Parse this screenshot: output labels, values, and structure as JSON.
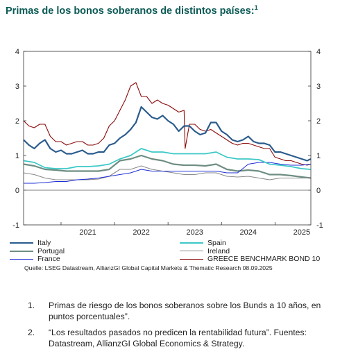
{
  "title": "Primas de los bonos soberanos de distintos países:",
  "title_sup": "1",
  "source": "Quelle: LSEG Datastream, AllianzGI Global Capital Markets & Thematic Research 08.09.2025",
  "notes": [
    {
      "num": "1.",
      "text": "Primas de riesgo de los bonos soberanos sobre los Bunds a 10 años, en puntos porcentuales”."
    },
    {
      "num": "2.",
      "text": "“Los resultados pasados no predicen la rentabilidad futura”. Fuentes: Datastream, AllianzGI Global Economics & Strategy."
    }
  ],
  "chart_data": {
    "type": "line",
    "title": "",
    "xlabel": "",
    "ylabel": "",
    "xlim": [
      2020.3,
      2025.67
    ],
    "ylim": [
      -1,
      4
    ],
    "yticks": [
      "4",
      "3",
      "2",
      "1",
      "0",
      "-1"
    ],
    "xticks": [
      "2021",
      "2022",
      "2023",
      "2024",
      "2025"
    ],
    "xtick_values": [
      2021,
      2022,
      2023,
      2024,
      2025
    ],
    "zero_line": true,
    "legend_position": "bottom",
    "series": [
      {
        "name": "Italy",
        "color": "#2a5b8c",
        "x": [
          2020.3,
          2020.4,
          2020.5,
          2020.6,
          2020.7,
          2020.8,
          2020.9,
          2021.0,
          2021.1,
          2021.2,
          2021.3,
          2021.4,
          2021.5,
          2021.6,
          2021.7,
          2021.8,
          2021.9,
          2022.0,
          2022.1,
          2022.2,
          2022.3,
          2022.4,
          2022.5,
          2022.6,
          2022.7,
          2022.8,
          2022.9,
          2023.0,
          2023.1,
          2023.2,
          2023.3,
          2023.4,
          2023.5,
          2023.6,
          2023.7,
          2023.8,
          2023.9,
          2024.0,
          2024.1,
          2024.2,
          2024.3,
          2024.4,
          2024.5,
          2024.6,
          2024.7,
          2024.8,
          2024.9,
          2025.0,
          2025.1,
          2025.2,
          2025.3,
          2025.4,
          2025.5,
          2025.6,
          2025.67
        ],
        "y": [
          1.45,
          1.3,
          1.2,
          1.35,
          1.45,
          1.2,
          1.1,
          1.15,
          1.05,
          1.05,
          1.1,
          1.15,
          1.05,
          1.05,
          1.1,
          1.1,
          1.3,
          1.35,
          1.5,
          1.6,
          1.75,
          1.95,
          2.4,
          2.25,
          2.1,
          2.05,
          2.15,
          2.0,
          1.9,
          1.7,
          1.85,
          1.85,
          1.7,
          1.6,
          1.65,
          1.95,
          1.95,
          1.7,
          1.6,
          1.45,
          1.4,
          1.45,
          1.55,
          1.4,
          1.35,
          1.35,
          1.3,
          1.1,
          1.1,
          1.05,
          1.0,
          0.95,
          0.9,
          0.85,
          0.9
        ]
      },
      {
        "name": "Spain",
        "color": "#3cc8c8",
        "x": [
          2020.3,
          2020.5,
          2020.7,
          2020.9,
          2021.1,
          2021.3,
          2021.5,
          2021.7,
          2021.9,
          2022.1,
          2022.3,
          2022.5,
          2022.7,
          2022.9,
          2023.1,
          2023.3,
          2023.5,
          2023.7,
          2023.9,
          2024.1,
          2024.3,
          2024.5,
          2024.7,
          2024.9,
          2025.1,
          2025.3,
          2025.5,
          2025.67
        ],
        "y": [
          0.85,
          0.8,
          0.65,
          0.62,
          0.62,
          0.68,
          0.68,
          0.7,
          0.75,
          0.9,
          1.0,
          1.2,
          1.1,
          1.1,
          1.05,
          1.05,
          1.05,
          1.05,
          1.1,
          0.95,
          0.9,
          0.9,
          0.88,
          0.75,
          0.72,
          0.68,
          0.62,
          0.6
        ]
      },
      {
        "name": "Portugal",
        "color": "#6e8e82",
        "x": [
          2020.3,
          2020.5,
          2020.7,
          2020.9,
          2021.1,
          2021.3,
          2021.5,
          2021.7,
          2021.9,
          2022.1,
          2022.3,
          2022.5,
          2022.7,
          2022.9,
          2023.1,
          2023.3,
          2023.5,
          2023.7,
          2023.9,
          2024.1,
          2024.3,
          2024.5,
          2024.7,
          2024.9,
          2025.1,
          2025.3,
          2025.5,
          2025.67
        ],
        "y": [
          0.75,
          0.7,
          0.6,
          0.58,
          0.55,
          0.55,
          0.55,
          0.55,
          0.6,
          0.85,
          0.9,
          1.0,
          0.9,
          0.85,
          0.75,
          0.72,
          0.72,
          0.7,
          0.75,
          0.6,
          0.55,
          0.58,
          0.55,
          0.45,
          0.45,
          0.42,
          0.38,
          0.35
        ]
      },
      {
        "name": "Ireland",
        "color": "#8a8a8a",
        "x": [
          2020.3,
          2020.5,
          2020.7,
          2020.9,
          2021.1,
          2021.3,
          2021.5,
          2021.7,
          2021.9,
          2022.1,
          2022.3,
          2022.5,
          2022.7,
          2022.9,
          2023.1,
          2023.3,
          2023.5,
          2023.7,
          2023.9,
          2024.1,
          2024.3,
          2024.5,
          2024.7,
          2024.9,
          2025.1,
          2025.3,
          2025.5,
          2025.67
        ],
        "y": [
          0.5,
          0.45,
          0.35,
          0.3,
          0.3,
          0.3,
          0.3,
          0.32,
          0.4,
          0.6,
          0.6,
          0.7,
          0.6,
          0.55,
          0.5,
          0.45,
          0.45,
          0.5,
          0.5,
          0.4,
          0.38,
          0.4,
          0.35,
          0.3,
          0.35,
          0.35,
          0.35,
          0.35
        ]
      },
      {
        "name": "France",
        "color": "#1f2fd6",
        "x": [
          2020.3,
          2020.5,
          2020.7,
          2020.9,
          2021.1,
          2021.3,
          2021.5,
          2021.7,
          2021.9,
          2022.1,
          2022.3,
          2022.5,
          2022.7,
          2022.9,
          2023.1,
          2023.3,
          2023.5,
          2023.7,
          2023.9,
          2024.1,
          2024.3,
          2024.5,
          2024.7,
          2024.9,
          2025.1,
          2025.3,
          2025.5,
          2025.67
        ],
        "y": [
          0.2,
          0.2,
          0.22,
          0.25,
          0.25,
          0.3,
          0.32,
          0.35,
          0.4,
          0.45,
          0.5,
          0.6,
          0.55,
          0.55,
          0.55,
          0.55,
          0.55,
          0.55,
          0.55,
          0.5,
          0.5,
          0.75,
          0.8,
          0.8,
          0.75,
          0.72,
          0.72,
          0.75
        ]
      },
      {
        "name": "GREECE BENCHMARK BOND 10",
        "color": "#8b0a0a",
        "x": [
          2020.3,
          2020.4,
          2020.5,
          2020.6,
          2020.7,
          2020.8,
          2020.9,
          2021.0,
          2021.1,
          2021.2,
          2021.3,
          2021.4,
          2021.5,
          2021.6,
          2021.7,
          2021.8,
          2021.9,
          2022.0,
          2022.1,
          2022.2,
          2022.3,
          2022.4,
          2022.5,
          2022.6,
          2022.7,
          2022.8,
          2022.9,
          2023.0,
          2023.1,
          2023.2,
          2023.3,
          2023.32,
          2023.4,
          2023.5,
          2023.6,
          2023.7,
          2023.8,
          2023.9,
          2024.0,
          2024.1,
          2024.2,
          2024.3,
          2024.4,
          2024.5,
          2024.6,
          2024.7,
          2024.8,
          2024.9,
          2025.0,
          2025.1,
          2025.2,
          2025.3,
          2025.4,
          2025.5,
          2025.6,
          2025.67
        ],
        "y": [
          2.0,
          1.85,
          1.8,
          1.9,
          1.9,
          1.55,
          1.4,
          1.4,
          1.3,
          1.35,
          1.4,
          1.4,
          1.3,
          1.3,
          1.35,
          1.5,
          1.85,
          2.0,
          2.3,
          2.6,
          3.0,
          3.1,
          2.7,
          2.7,
          2.5,
          2.6,
          2.5,
          2.45,
          2.35,
          2.25,
          2.3,
          1.2,
          1.9,
          1.9,
          1.75,
          1.7,
          1.75,
          1.65,
          1.55,
          1.45,
          1.35,
          1.3,
          1.35,
          1.35,
          1.3,
          1.25,
          1.2,
          1.2,
          0.95,
          0.9,
          0.85,
          0.85,
          0.8,
          0.75,
          0.72,
          0.75
        ]
      }
    ]
  }
}
